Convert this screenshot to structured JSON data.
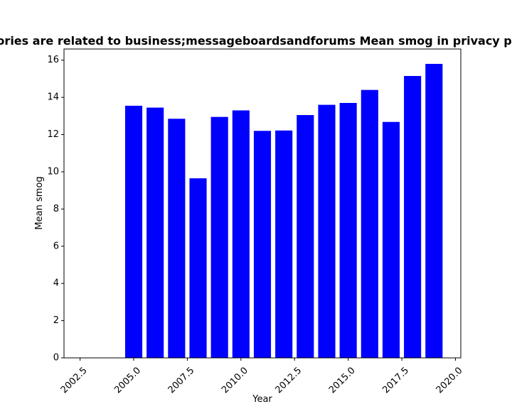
{
  "chart_data": {
    "type": "bar",
    "title": "Categories are related to business;messageboardsandforums Mean smog in privacy policies",
    "xlabel": "Year",
    "ylabel": "Mean smog",
    "x": [
      2005,
      2006,
      2007,
      2008,
      2009,
      2010,
      2011,
      2012,
      2013,
      2014,
      2015,
      2016,
      2017,
      2018,
      2019
    ],
    "values": [
      13.55,
      13.45,
      12.85,
      9.65,
      12.95,
      13.3,
      12.2,
      12.22,
      13.05,
      13.6,
      13.7,
      14.4,
      12.68,
      15.15,
      15.8
    ],
    "xlim": [
      2001.75,
      2020.25
    ],
    "ylim": [
      0,
      16.6
    ],
    "xticks": [
      2002.5,
      2005.0,
      2007.5,
      2010.0,
      2012.5,
      2015.0,
      2017.5,
      2020.0
    ],
    "xtick_labels": [
      "2002.5",
      "2005.0",
      "2007.5",
      "2010.0",
      "2012.5",
      "2015.0",
      "2017.5",
      "2020.0"
    ],
    "yticks": [
      0,
      2,
      4,
      6,
      8,
      10,
      12,
      14,
      16
    ],
    "ytick_labels": [
      "0",
      "2",
      "4",
      "6",
      "8",
      "10",
      "12",
      "14",
      "16"
    ],
    "bar_color": "#0000ff",
    "grid": false
  }
}
